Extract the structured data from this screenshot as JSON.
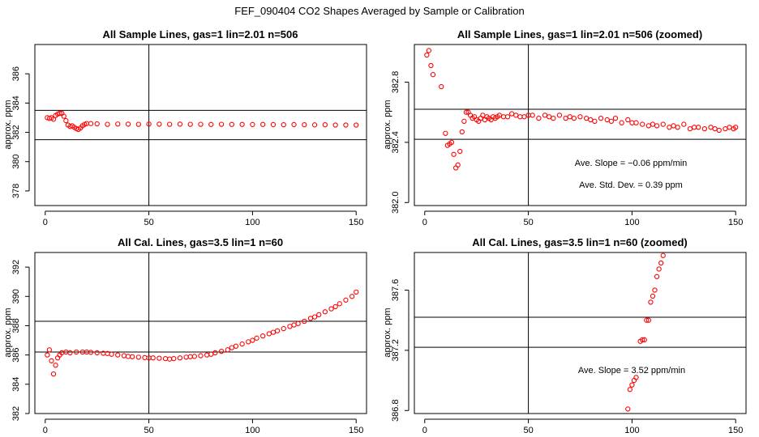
{
  "figure": {
    "title": "FEF_090404  CO2 Shapes Averaged by Sample or Calibration"
  },
  "chart_data": [
    {
      "id": "p1",
      "type": "scatter",
      "title": "All Sample Lines, gas=1 lin=2.01 n=506",
      "ylabel": "approx. ppm",
      "xlabel": "",
      "xlim": [
        -5,
        155
      ],
      "ylim": [
        377,
        388
      ],
      "xticks": [
        0,
        50,
        100,
        150
      ],
      "yticks": [
        378,
        380,
        382,
        384,
        386
      ],
      "ytick_labels": [
        "378",
        "380",
        "382",
        "384",
        "386"
      ],
      "hlines": [
        381.5,
        383.5
      ],
      "vline": 50,
      "color": "#ff0000",
      "annotations": [],
      "x": [
        1,
        2,
        3,
        4,
        5,
        6,
        7,
        8,
        9,
        10,
        11,
        12,
        13,
        14,
        15,
        16,
        17,
        18,
        19,
        20,
        22,
        25,
        30,
        35,
        40,
        45,
        50,
        55,
        60,
        65,
        70,
        75,
        80,
        85,
        90,
        95,
        100,
        105,
        110,
        115,
        120,
        125,
        130,
        135,
        140,
        145,
        150
      ],
      "y": [
        383.0,
        382.95,
        383.0,
        382.9,
        383.15,
        383.25,
        383.3,
        383.3,
        383.1,
        382.8,
        382.5,
        382.4,
        382.45,
        382.35,
        382.25,
        382.2,
        382.3,
        382.45,
        382.55,
        382.6,
        382.6,
        382.58,
        382.55,
        382.57,
        382.56,
        382.55,
        382.57,
        382.56,
        382.55,
        382.56,
        382.55,
        382.55,
        382.54,
        382.55,
        382.54,
        382.54,
        382.53,
        382.54,
        382.53,
        382.52,
        382.53,
        382.52,
        382.51,
        382.52,
        382.5,
        382.5,
        382.5
      ]
    },
    {
      "id": "p2",
      "type": "scatter",
      "title": "All Sample Lines, gas=1 lin=2.01 n=506 (zoomed)",
      "ylabel": "approx. ppm",
      "xlabel": "",
      "xlim": [
        -5,
        155
      ],
      "ylim": [
        381.98,
        383.05
      ],
      "xticks": [
        0,
        50,
        100,
        150
      ],
      "yticks": [
        382.0,
        382.4,
        382.8
      ],
      "ytick_labels": [
        "382.0",
        "382.4",
        "382.8"
      ],
      "hlines": [
        382.42,
        382.62
      ],
      "vline": 50,
      "color": "#ff0000",
      "annotations": [
        "Ave. Slope =  −0.06  ppm/min",
        "Ave. Std. Dev. =  0.39  ppm"
      ],
      "x": [
        1,
        2,
        3,
        4,
        8,
        10,
        11,
        12,
        13,
        14,
        15,
        16,
        17,
        18,
        19,
        20,
        21,
        22,
        23,
        24,
        25,
        26,
        27,
        28,
        29,
        30,
        31,
        32,
        33,
        34,
        35,
        36,
        38,
        40,
        42,
        44,
        46,
        48,
        50,
        52,
        55,
        58,
        60,
        62,
        65,
        68,
        70,
        72,
        75,
        78,
        80,
        82,
        85,
        88,
        90,
        92,
        95,
        98,
        100,
        102,
        105,
        108,
        110,
        112,
        115,
        118,
        120,
        122,
        125,
        128,
        130,
        132,
        135,
        138,
        140,
        142,
        145,
        147,
        149,
        150
      ],
      "y": [
        382.98,
        383.01,
        382.91,
        382.85,
        382.77,
        382.46,
        382.38,
        382.39,
        382.4,
        382.32,
        382.23,
        382.25,
        382.34,
        382.47,
        382.54,
        382.6,
        382.6,
        382.58,
        382.56,
        382.57,
        382.55,
        382.54,
        382.56,
        382.58,
        382.55,
        382.57,
        382.56,
        382.55,
        382.57,
        382.56,
        382.57,
        382.58,
        382.57,
        382.57,
        382.59,
        382.58,
        382.57,
        382.57,
        382.58,
        382.58,
        382.56,
        382.58,
        382.57,
        382.56,
        382.58,
        382.56,
        382.57,
        382.56,
        382.57,
        382.56,
        382.55,
        382.54,
        382.56,
        382.55,
        382.54,
        382.56,
        382.53,
        382.55,
        382.53,
        382.53,
        382.52,
        382.51,
        382.52,
        382.51,
        382.52,
        382.5,
        382.51,
        382.5,
        382.52,
        382.49,
        382.5,
        382.5,
        382.49,
        382.5,
        382.49,
        382.48,
        382.49,
        382.5,
        382.49,
        382.5
      ]
    },
    {
      "id": "p3",
      "type": "scatter",
      "title": "All Cal. Lines, gas=3.5 lin=1 n=60",
      "ylabel": "approx. ppm",
      "xlabel": "",
      "xlim": [
        -5,
        155
      ],
      "ylim": [
        382,
        393
      ],
      "xticks": [
        0,
        50,
        100,
        150
      ],
      "yticks": [
        382,
        384,
        386,
        388,
        390,
        392
      ],
      "ytick_labels": [
        "382",
        "384",
        "386",
        "388",
        "390",
        "392"
      ],
      "hlines": [
        386.2,
        388.3
      ],
      "vline": 50,
      "color": "#ff0000",
      "annotations": [],
      "x": [
        1,
        2,
        3,
        4,
        5,
        6,
        7,
        8,
        10,
        12,
        15,
        18,
        20,
        22,
        25,
        28,
        30,
        32,
        35,
        38,
        40,
        42,
        45,
        48,
        50,
        52,
        55,
        58,
        60,
        62,
        65,
        68,
        70,
        72,
        75,
        78,
        80,
        82,
        85,
        88,
        90,
        92,
        95,
        98,
        100,
        102,
        105,
        108,
        110,
        112,
        115,
        118,
        120,
        122,
        125,
        128,
        130,
        132,
        135,
        138,
        140,
        142,
        145,
        148,
        150
      ],
      "y": [
        386.0,
        386.35,
        385.6,
        384.7,
        385.3,
        385.8,
        386.0,
        386.15,
        386.2,
        386.15,
        386.2,
        386.2,
        386.2,
        386.18,
        386.15,
        386.12,
        386.1,
        386.05,
        386.0,
        385.95,
        385.9,
        385.88,
        385.85,
        385.82,
        385.8,
        385.8,
        385.78,
        385.75,
        385.72,
        385.75,
        385.8,
        385.85,
        385.88,
        385.9,
        385.95,
        386.0,
        386.05,
        386.15,
        386.25,
        386.35,
        386.5,
        386.6,
        386.75,
        386.9,
        387.0,
        387.15,
        387.3,
        387.45,
        387.55,
        387.65,
        387.8,
        387.95,
        388.05,
        388.15,
        388.3,
        388.5,
        388.6,
        388.75,
        388.95,
        389.15,
        389.3,
        389.5,
        389.75,
        390.0,
        390.3
      ]
    },
    {
      "id": "p4",
      "type": "scatter",
      "title": "All Cal. Lines, gas=3.5 lin=1 n=60 (zoomed)",
      "ylabel": "approx. ppm",
      "xlabel": "",
      "xlim": [
        -5,
        155
      ],
      "ylim": [
        386.78,
        387.85
      ],
      "xticks": [
        0,
        50,
        100,
        150
      ],
      "yticks": [
        386.8,
        387.2,
        387.6
      ],
      "ytick_labels": [
        "386.8",
        "387.2",
        "387.6"
      ],
      "hlines": [
        387.22,
        387.42
      ],
      "vline": 50,
      "color": "#ff0000",
      "annotations": [
        "Ave. Slope =  3.52  ppm/min"
      ],
      "x": [
        98,
        99,
        100,
        101,
        102,
        104,
        105,
        106,
        107,
        108,
        109,
        110,
        111,
        112,
        113,
        114,
        115
      ],
      "y": [
        386.81,
        386.94,
        386.97,
        387.0,
        387.02,
        387.26,
        387.27,
        387.27,
        387.4,
        387.4,
        387.52,
        387.56,
        387.6,
        387.69,
        387.74,
        387.78,
        387.83
      ]
    }
  ]
}
